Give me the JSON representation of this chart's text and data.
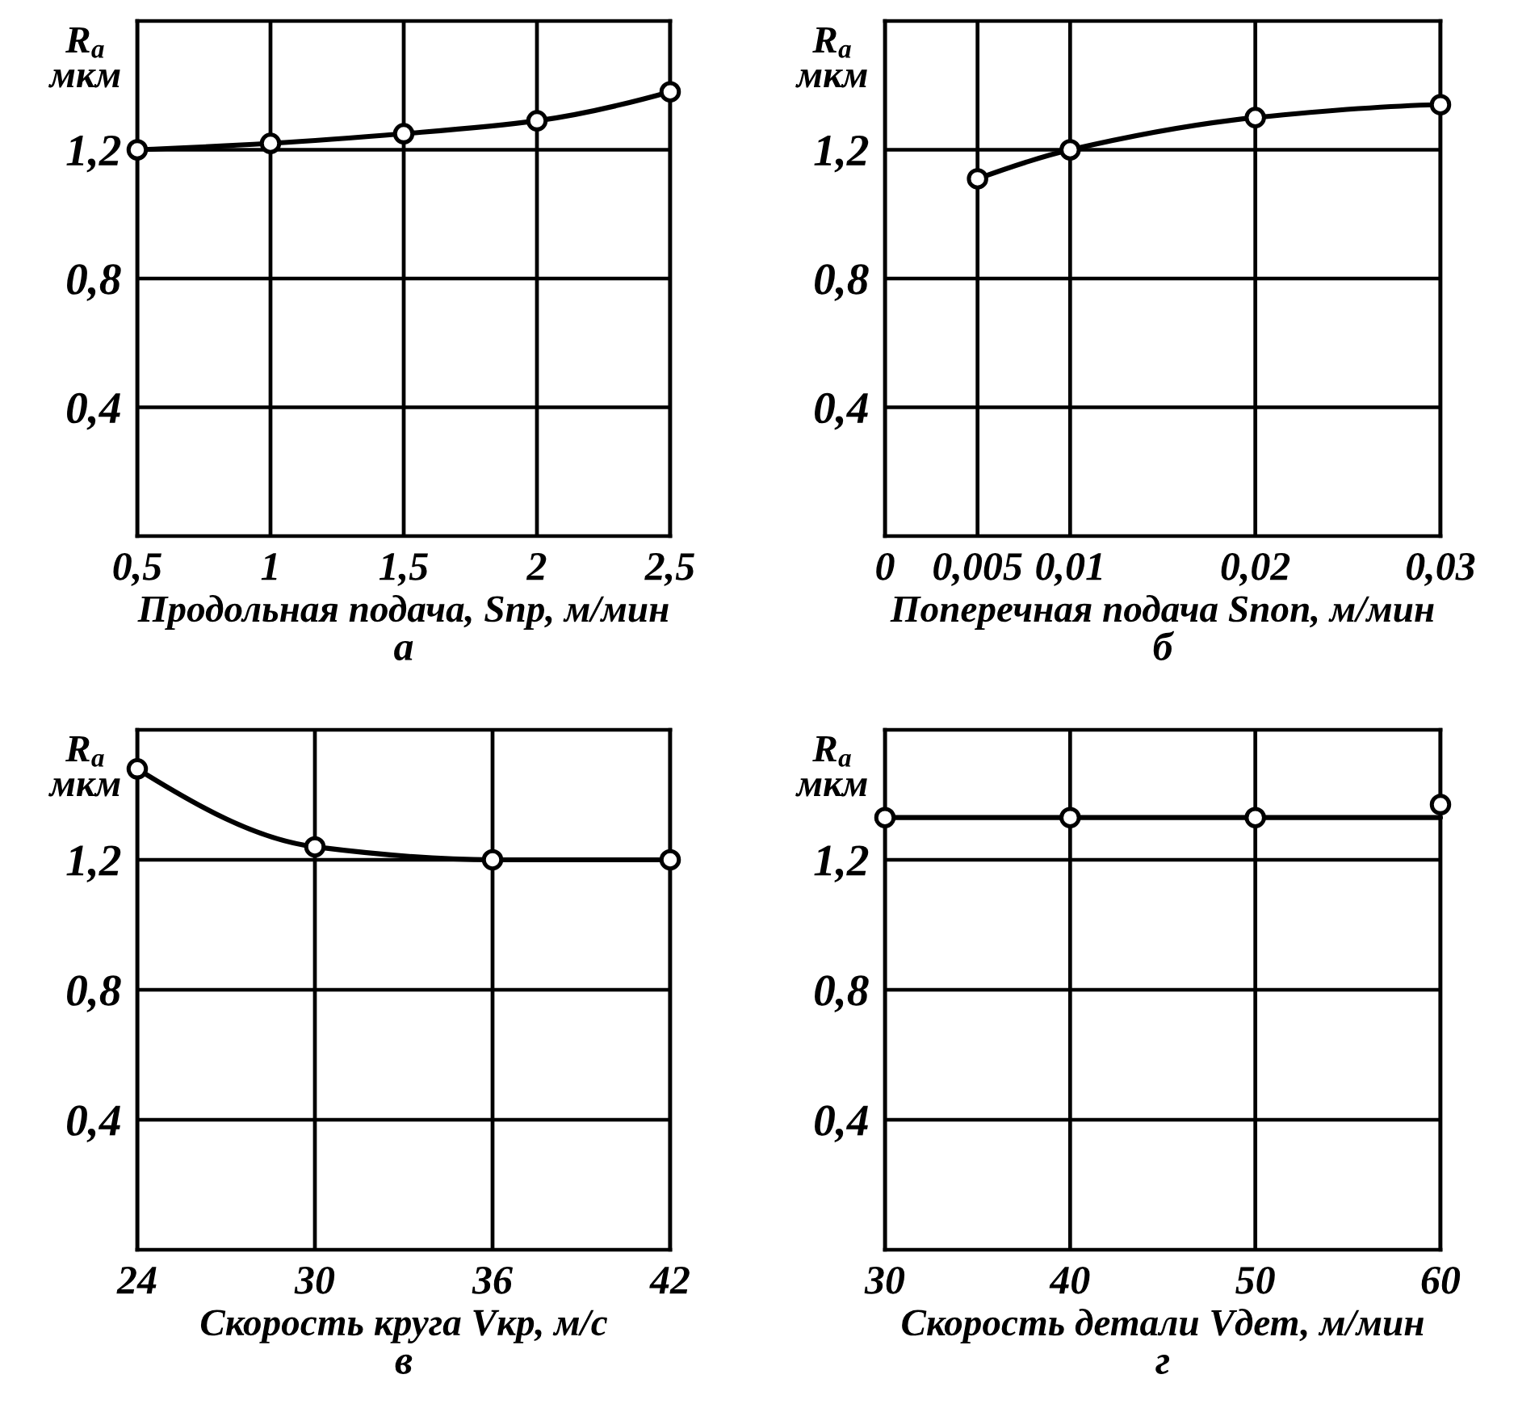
{
  "chart_data": [
    {
      "type": "line",
      "xlabel": "Продольная подача, Sпр, м/мин",
      "ylabel": "R$_{a}$\nмкм",
      "annotations": [
        "а"
      ],
      "x": [
        0.5,
        1,
        1.5,
        2,
        2.5
      ],
      "series": [
        {
          "color": "#000000",
          "values": [
            1.2,
            1.22,
            1.25,
            1.29,
            1.38
          ]
        }
      ],
      "xlim": [
        0.5,
        2.5
      ],
      "ylim": [
        0,
        1.6
      ],
      "xticks": [
        {
          "value": 0.5,
          "label": "0,5"
        },
        1,
        {
          "value": 1.5,
          "label": "1,5"
        },
        2,
        {
          "value": 2.5,
          "label": "2,5"
        }
      ],
      "yticks": [
        {
          "value": 0.4,
          "label": "0,4"
        },
        {
          "value": 0.8,
          "label": "0,8"
        },
        {
          "value": 1.2,
          "label": "1,2"
        }
      ],
      "grid": true,
      "marker": "circle",
      "line_style": "solid"
    },
    {
      "type": "line",
      "xlabel": "Поперечная подача Sпоп, м/мин",
      "ylabel": "R$_{a}$\nмкм",
      "annotations": [
        "б"
      ],
      "x": [
        0.005,
        0.01,
        0.02,
        0.03
      ],
      "series": [
        {
          "color": "#000000",
          "values": [
            1.11,
            1.2,
            1.3,
            1.34
          ]
        }
      ],
      "xlim": [
        0,
        0.03
      ],
      "ylim": [
        0,
        1.6
      ],
      "xticks": [
        0,
        {
          "value": 0.005,
          "label": "0,005"
        },
        {
          "value": 0.01,
          "label": "0,01"
        },
        {
          "value": 0.02,
          "label": "0,02"
        },
        {
          "value": 0.03,
          "label": "0,03"
        }
      ],
      "yticks": [
        {
          "value": 0.4,
          "label": "0,4"
        },
        {
          "value": 0.8,
          "label": "0,8"
        },
        {
          "value": 1.2,
          "label": "1,2"
        }
      ],
      "grid": true,
      "marker": "circle",
      "line_style": "solid"
    },
    {
      "type": "line",
      "xlabel": "Скорость круга Vкр, м/с",
      "ylabel": "R$_{a}$\nмкм",
      "annotations": [
        "в"
      ],
      "x": [
        24,
        30,
        36,
        42
      ],
      "series": [
        {
          "color": "#000000",
          "values": [
            1.48,
            1.24,
            1.2,
            1.2
          ]
        }
      ],
      "xlim": [
        24,
        42
      ],
      "ylim": [
        0,
        1.6
      ],
      "xticks": [
        24,
        30,
        36,
        42
      ],
      "yticks": [
        {
          "value": 0.4,
          "label": "0,4"
        },
        {
          "value": 0.8,
          "label": "0,8"
        },
        {
          "value": 1.2,
          "label": "1,2"
        }
      ],
      "grid": true,
      "marker": "circle",
      "line_style": "solid"
    },
    {
      "type": "scatter",
      "xlabel": "Скорость детали Vдет, м/мин",
      "ylabel": "R$_{a}$\nмкм",
      "annotations": [
        "г"
      ],
      "x": [
        30,
        40,
        50,
        60
      ],
      "series": [
        {
          "type": "line",
          "color": "#000000",
          "x": [
            30,
            60
          ],
          "values": [
            1.33,
            1.33
          ],
          "marker": "none"
        },
        {
          "type": "scatter",
          "color": "#000000",
          "values": [
            1.33,
            1.33,
            1.33,
            1.37
          ]
        }
      ],
      "xlim": [
        30,
        60
      ],
      "ylim": [
        0,
        1.6
      ],
      "xticks": [
        30,
        40,
        50,
        60
      ],
      "yticks": [
        {
          "value": 0.4,
          "label": "0,4"
        },
        {
          "value": 0.8,
          "label": "0,8"
        },
        {
          "value": 1.2,
          "label": "1,2"
        }
      ],
      "grid": true,
      "marker": "circle",
      "line_style": "solid"
    }
  ]
}
